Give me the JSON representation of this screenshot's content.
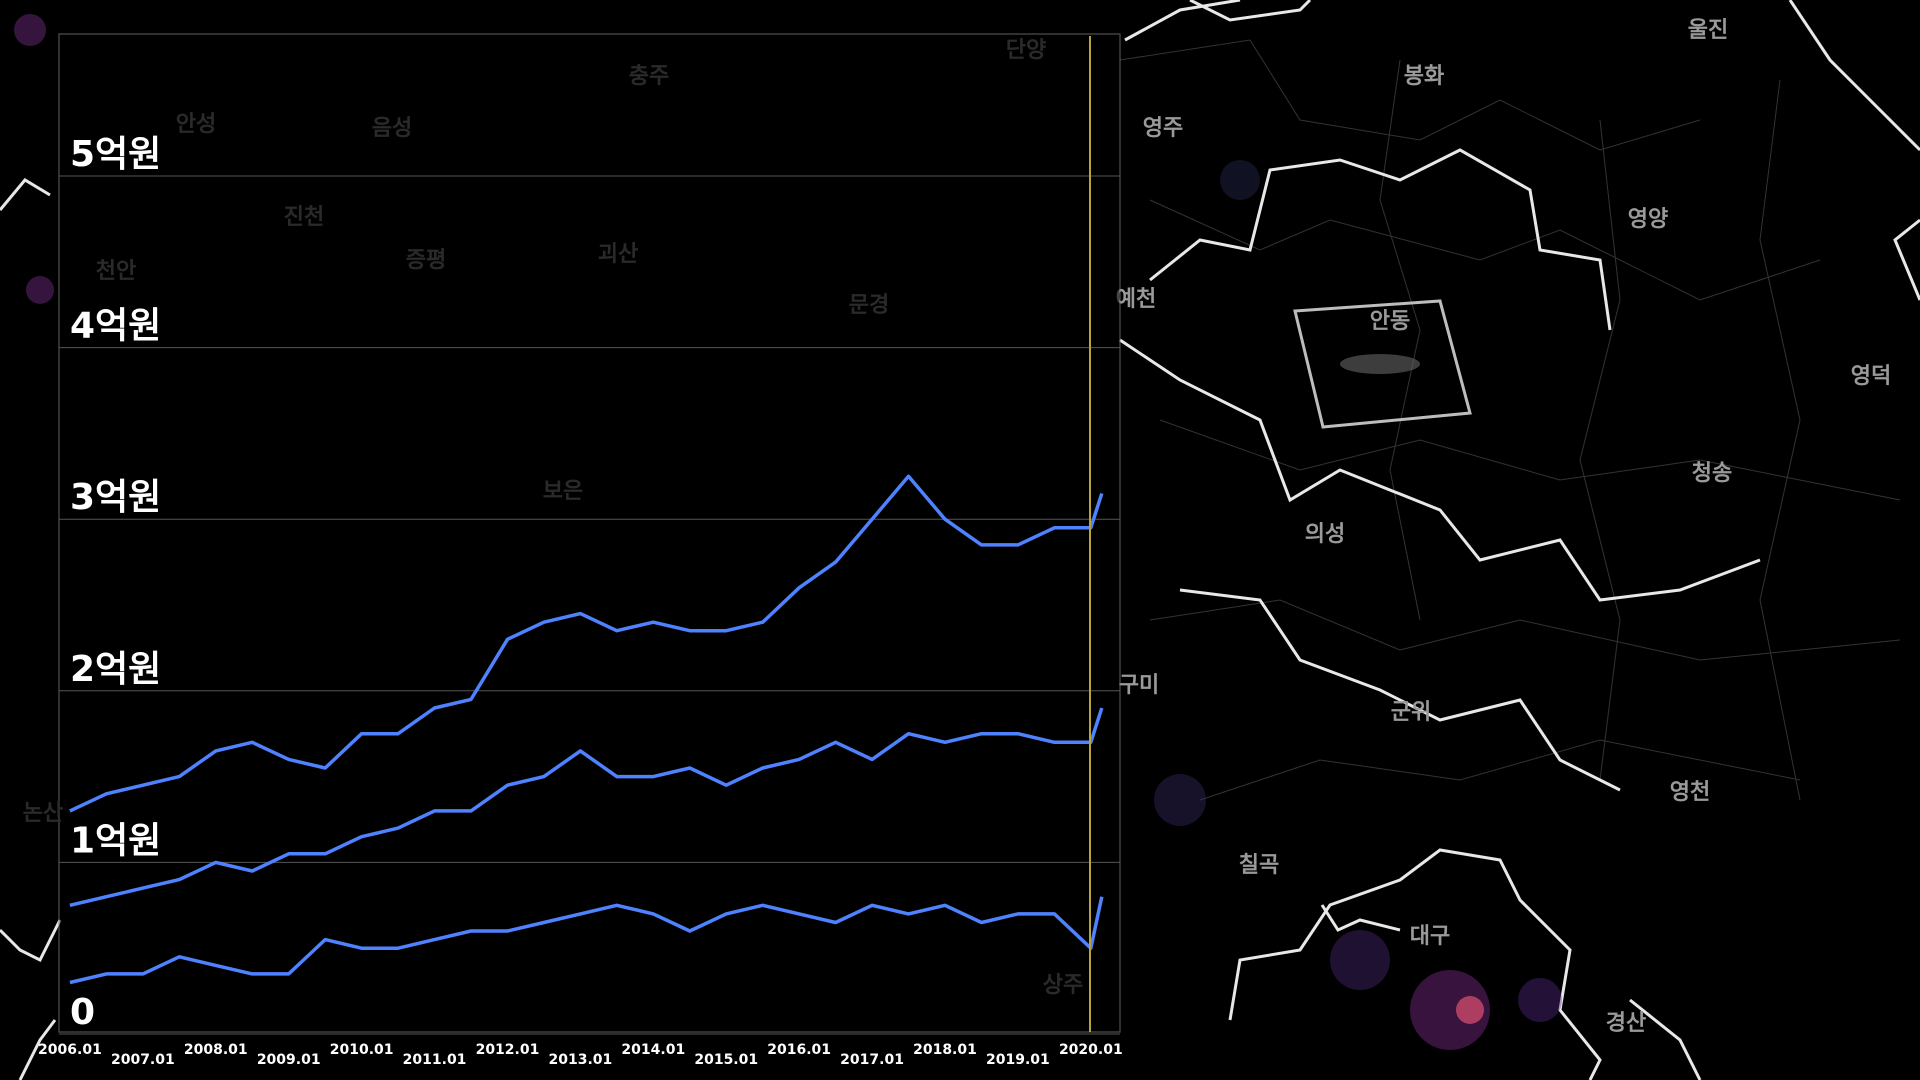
{
  "map": {
    "labels": [
      "울진",
      "봉화",
      "영주",
      "영양",
      "안동",
      "영덕",
      "청송",
      "의성",
      "예천",
      "구미",
      "군위",
      "영천",
      "칠곡",
      "대구",
      "경산"
    ],
    "faded_labels": [
      "충주",
      "단양",
      "음성",
      "안성",
      "진천",
      "증평",
      "괴산",
      "천안",
      "문경",
      "보은",
      "논산",
      "상주"
    ]
  },
  "chart_data": {
    "type": "line",
    "x": [
      2006.0,
      2006.5,
      2007.0,
      2007.5,
      2008.0,
      2008.5,
      2009.0,
      2009.5,
      2010.0,
      2010.5,
      2011.0,
      2011.5,
      2012.0,
      2012.5,
      2013.0,
      2013.5,
      2014.0,
      2014.5,
      2015.0,
      2015.5,
      2016.0,
      2016.5,
      2017.0,
      2017.5,
      2018.0,
      2018.5,
      2019.0,
      2019.5,
      2020.0,
      2020.15
    ],
    "series": [
      {
        "color": "#4f82ff",
        "values": [
          1.3,
          1.4,
          1.45,
          1.5,
          1.65,
          1.7,
          1.6,
          1.55,
          1.75,
          1.75,
          1.9,
          1.95,
          2.3,
          2.4,
          2.45,
          2.35,
          2.4,
          2.35,
          2.35,
          2.4,
          2.6,
          2.75,
          3.0,
          3.25,
          3.0,
          2.85,
          2.85,
          2.95,
          2.95,
          3.15
        ]
      },
      {
        "color": "#4f82ff",
        "values": [
          0.75,
          0.8,
          0.85,
          0.9,
          1.0,
          0.95,
          1.05,
          1.05,
          1.15,
          1.2,
          1.3,
          1.3,
          1.45,
          1.5,
          1.65,
          1.5,
          1.5,
          1.55,
          1.45,
          1.55,
          1.6,
          1.7,
          1.6,
          1.75,
          1.7,
          1.75,
          1.75,
          1.7,
          1.7,
          1.9
        ]
      },
      {
        "color": "#4f82ff",
        "values": [
          0.3,
          0.35,
          0.35,
          0.45,
          0.4,
          0.35,
          0.35,
          0.55,
          0.5,
          0.5,
          0.55,
          0.6,
          0.6,
          0.65,
          0.7,
          0.75,
          0.7,
          0.6,
          0.7,
          0.75,
          0.7,
          0.65,
          0.75,
          0.7,
          0.75,
          0.65,
          0.7,
          0.7,
          0.5,
          0.8
        ]
      }
    ],
    "xlim": [
      2005.85,
      2020.4
    ],
    "xticks": [
      {
        "value": 2006,
        "label": "2006.01"
      },
      {
        "value": 2007,
        "label": "2007.01"
      },
      {
        "value": 2008,
        "label": "2008.01"
      },
      {
        "value": 2009,
        "label": "2009.01"
      },
      {
        "value": 2010,
        "label": "2010.01"
      },
      {
        "value": 2011,
        "label": "2011.01"
      },
      {
        "value": 2012,
        "label": "2012.01"
      },
      {
        "value": 2013,
        "label": "2013.01"
      },
      {
        "value": 2014,
        "label": "2014.01"
      },
      {
        "value": 2015,
        "label": "2015.01"
      },
      {
        "value": 2016,
        "label": "2016.01"
      },
      {
        "value": 2017,
        "label": "2017.01"
      },
      {
        "value": 2018,
        "label": "2018.01"
      },
      {
        "value": 2019,
        "label": "2019.01"
      },
      {
        "value": 2020,
        "label": "2020.01"
      }
    ],
    "ylim": [
      0,
      5.8
    ],
    "yticks": [
      {
        "value": 0,
        "label": "0"
      },
      {
        "value": 1,
        "label": "1억원"
      },
      {
        "value": 2,
        "label": "2억원"
      },
      {
        "value": 3,
        "label": "3억원"
      },
      {
        "value": 4,
        "label": "4억원"
      },
      {
        "value": 5,
        "label": "5억원"
      }
    ],
    "grid": true
  }
}
